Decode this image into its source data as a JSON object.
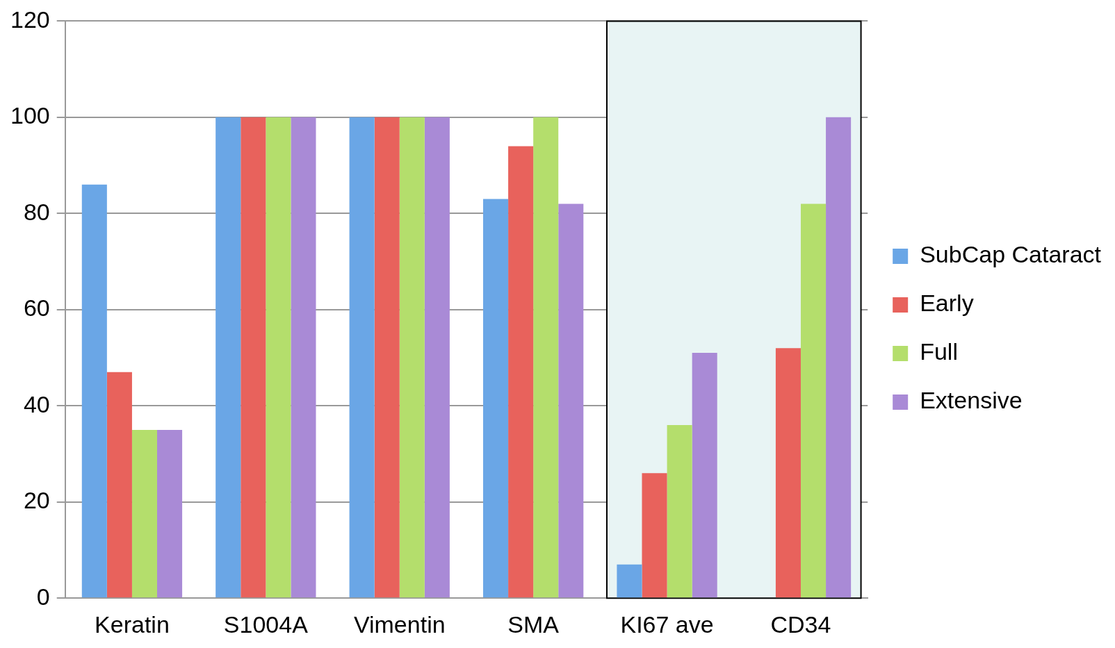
{
  "chart_data": {
    "type": "bar",
    "categories": [
      "Keratin",
      "S1004A",
      "Vimentin",
      "SMA",
      "KI67 ave",
      "CD34"
    ],
    "series": [
      {
        "name": "SubCap Cataract",
        "color": "#6aa6e6",
        "values": [
          86,
          100,
          100,
          83,
          7,
          0
        ]
      },
      {
        "name": "Early",
        "color": "#e8625c",
        "values": [
          47,
          100,
          100,
          94,
          26,
          52
        ]
      },
      {
        "name": "Full",
        "color": "#b4de6c",
        "values": [
          35,
          100,
          100,
          100,
          36,
          82
        ]
      },
      {
        "name": "Extensive",
        "color": "#a98ad6",
        "values": [
          35,
          100,
          100,
          82,
          51,
          100
        ]
      }
    ],
    "ylim": [
      0,
      120
    ],
    "yticks": [
      0,
      20,
      40,
      60,
      80,
      100,
      120
    ],
    "grid": "y",
    "legend": "right",
    "bands": [
      {
        "axis": "x",
        "from": "KI67 ave",
        "to": "CD34",
        "color": "#e8f4f4"
      }
    ]
  }
}
